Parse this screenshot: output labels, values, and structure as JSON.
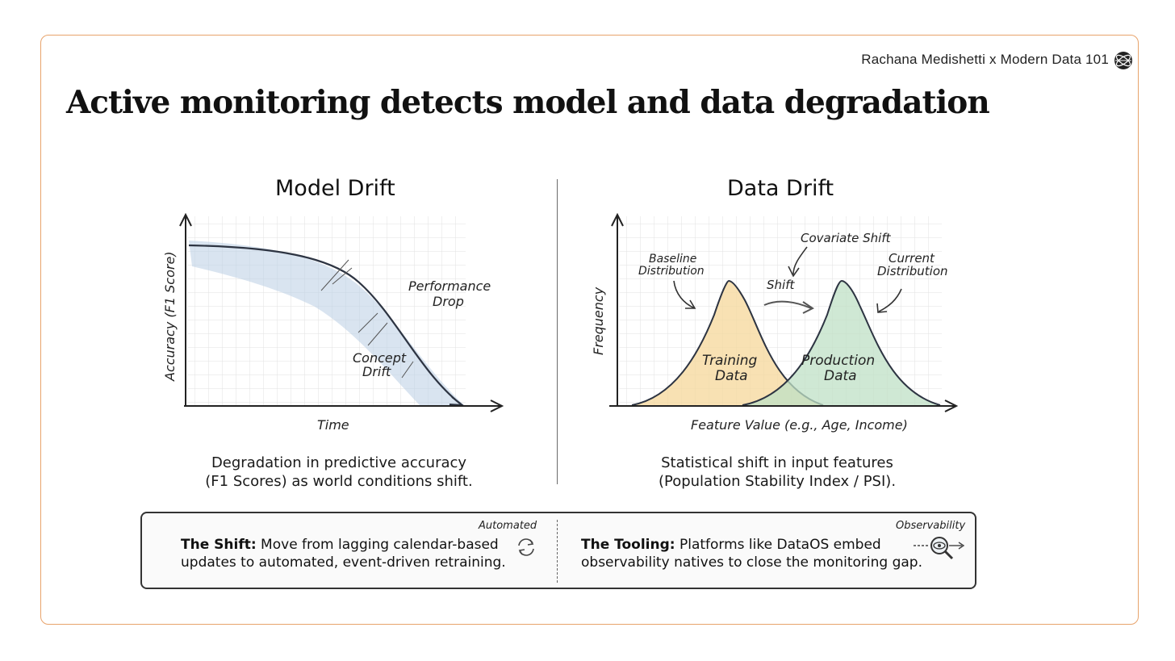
{
  "header": {
    "byline": "Rachana Medishetti x Modern Data 101",
    "title": "Active monitoring detects model and data degradation"
  },
  "model_drift": {
    "title": "Model Drift",
    "y_axis_label": "Accuracy (F1 Score)",
    "x_axis_label": "Time",
    "annotation_performance": [
      "Performance",
      "Drop"
    ],
    "annotation_concept": [
      "Concept",
      "Drift"
    ],
    "caption_line1": "Degradation in predictive accuracy",
    "caption_line2": "(F1 Scores) as world conditions shift."
  },
  "data_drift": {
    "title": "Data Drift",
    "y_axis_label": "Frequency",
    "x_axis_label": "Feature Value (e.g., Age, Income)",
    "annotation_baseline": [
      "Baseline",
      "Distribution"
    ],
    "annotation_covariate": "Covariate Shift",
    "annotation_current": [
      "Current",
      "Distribution"
    ],
    "annotation_shift": "Shift",
    "label_training": [
      "Training",
      "Data"
    ],
    "label_production": [
      "Production",
      "Data"
    ],
    "caption_line1": "Statistical shift in input features",
    "caption_line2": "(Population Stability Index / PSI)."
  },
  "bottom": {
    "shift": {
      "tag": "Automated",
      "label": "The Shift:",
      "text_line1": " Move from lagging calendar-based",
      "text_line2": "updates to automated, event-driven retraining."
    },
    "tooling": {
      "tag": "Observability",
      "label": "The Tooling:",
      "text_line1": " Platforms like DataOS embed",
      "text_line2": "observability natives to close the monitoring gap."
    }
  },
  "colors": {
    "frame": "#e8a36b",
    "training_fill": "#f6d79a",
    "production_fill": "#bfe0c6",
    "drift_band": "#b9cde3"
  },
  "icons": {
    "logo": "globe-logo-icon",
    "refresh": "refresh-cycle-icon",
    "observability": "magnifier-eye-icon"
  }
}
